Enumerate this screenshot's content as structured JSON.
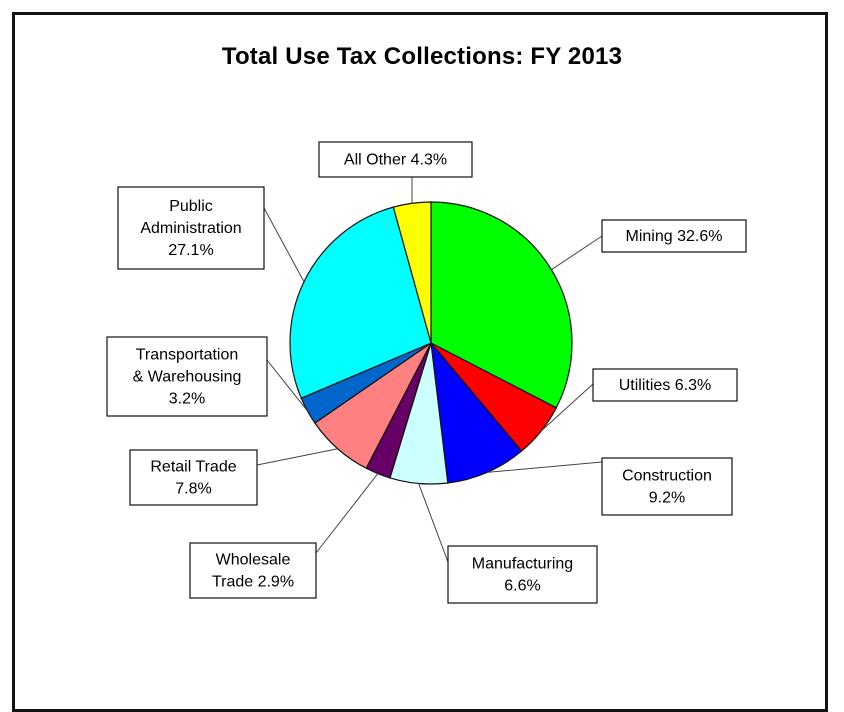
{
  "chart_data": {
    "type": "pie",
    "title": "Total Use Tax Collections: FY 2013",
    "start_angle_deg": 0,
    "direction": "clockwise",
    "slices": [
      {
        "name": "Mining",
        "value": 32.6,
        "label_lines": [
          "Mining 32.6%"
        ],
        "color": "#00ff00"
      },
      {
        "name": "Utilities",
        "value": 6.3,
        "label_lines": [
          "Utilities 6.3%"
        ],
        "color": "#ff0000"
      },
      {
        "name": "Construction",
        "value": 9.2,
        "label_lines": [
          "Construction",
          "9.2%"
        ],
        "color": "#0000ff"
      },
      {
        "name": "Manufacturing",
        "value": 6.6,
        "label_lines": [
          "Manufacturing",
          "6.6%"
        ],
        "color": "#ccffff"
      },
      {
        "name": "Wholesale Trade",
        "value": 2.9,
        "label_lines": [
          "Wholesale",
          "Trade 2.9%"
        ],
        "color": "#660066"
      },
      {
        "name": "Retail Trade",
        "value": 7.8,
        "label_lines": [
          "Retail Trade",
          "7.8%"
        ],
        "color": "#ff8080"
      },
      {
        "name": "Transportation & Warehousing",
        "value": 3.2,
        "label_lines": [
          "Transportation",
          "& Warehousing",
          "3.2%"
        ],
        "color": "#0066cc"
      },
      {
        "name": "Public Administration",
        "value": 27.1,
        "label_lines": [
          "Public",
          "Administration",
          "27.1%"
        ],
        "color": "#00ffff"
      },
      {
        "name": "All Other",
        "value": 4.3,
        "label_lines": [
          "All Other 4.3%"
        ],
        "color": "#ffff00"
      }
    ]
  }
}
